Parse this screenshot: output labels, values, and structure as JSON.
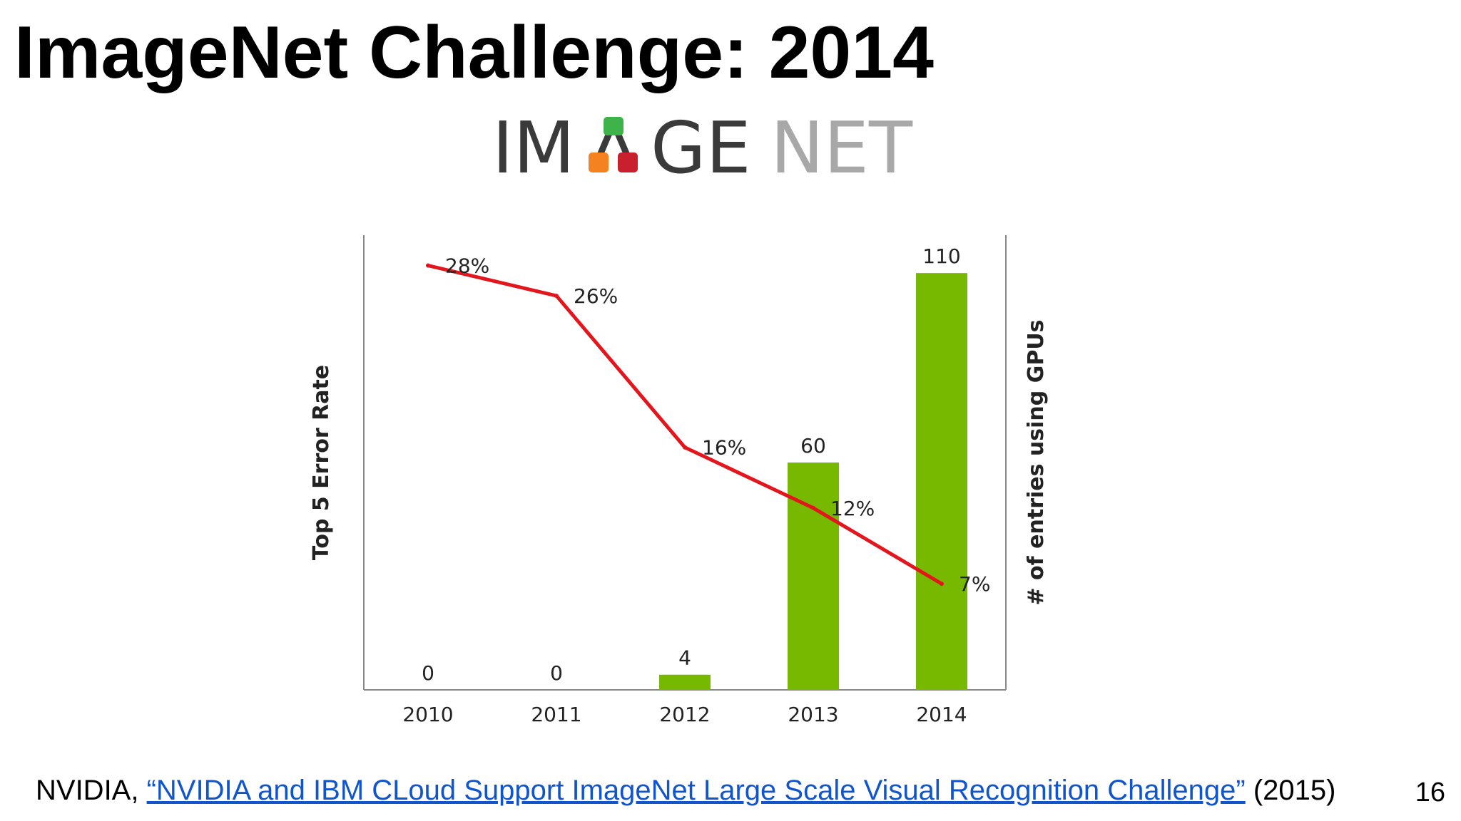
{
  "slide": {
    "title": "ImageNet Challenge: 2014",
    "page_number": "16"
  },
  "logo": {
    "text": "IMAGENET",
    "colors": {
      "green": "#3db34a",
      "orange": "#f58220",
      "red": "#c8202c",
      "dark": "#3a3a3a",
      "light": "#a8a8a8"
    }
  },
  "footer": {
    "prefix": "NVIDIA, ",
    "link_text": "“NVIDIA and IBM CLoud Support ImageNet Large Scale Visual Recognition Challenge”",
    "suffix": " (2015)"
  },
  "chart_data": {
    "type": "bar",
    "categories": [
      "2010",
      "2011",
      "2012",
      "2013",
      "2014"
    ],
    "bar_series": {
      "values": [
        0,
        0,
        4,
        60,
        110
      ],
      "labels": [
        "0",
        "0",
        "4",
        "60",
        "110"
      ],
      "ylabel": "# of entries using GPUs",
      "color": "#76b900",
      "ylim": [
        0,
        120
      ]
    },
    "line_series": {
      "type": "line",
      "values": [
        28,
        26,
        16,
        12,
        7
      ],
      "labels": [
        "28%",
        "26%",
        "16%",
        "12%",
        "7%"
      ],
      "ylabel": "Top 5 Error Rate",
      "color": "#e2161c",
      "ylim": [
        0,
        30
      ]
    },
    "grid": false,
    "legend": "none"
  }
}
